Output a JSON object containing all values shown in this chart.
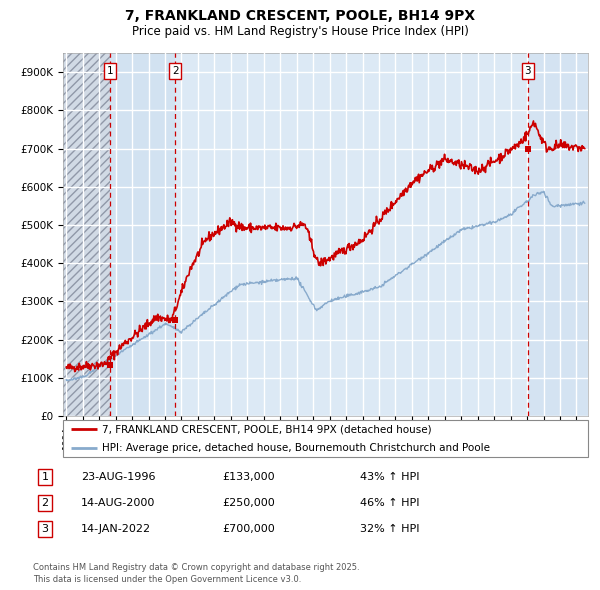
{
  "title": "7, FRANKLAND CRESCENT, POOLE, BH14 9PX",
  "subtitle": "Price paid vs. HM Land Registry's House Price Index (HPI)",
  "ylim": [
    0,
    950000
  ],
  "yticks": [
    0,
    100000,
    200000,
    300000,
    400000,
    500000,
    600000,
    700000,
    800000,
    900000
  ],
  "ytick_labels": [
    "£0",
    "£100K",
    "£200K",
    "£300K",
    "£400K",
    "£500K",
    "£600K",
    "£700K",
    "£800K",
    "£900K"
  ],
  "x_start_year": 1993.8,
  "x_end_year": 2025.7,
  "plot_background": "#dce9f5",
  "grid_color": "#ffffff",
  "purchase_dates": [
    1996.644,
    2000.619,
    2022.038
  ],
  "purchase_prices": [
    133000,
    250000,
    700000
  ],
  "purchase_labels": [
    "1",
    "2",
    "3"
  ],
  "dashed_line_color": "#cc0000",
  "marker_color": "#cc0000",
  "red_line_color": "#cc0000",
  "blue_line_color": "#88aacc",
  "legend_red_label": "7, FRANKLAND CRESCENT, POOLE, BH14 9PX (detached house)",
  "legend_blue_label": "HPI: Average price, detached house, Bournemouth Christchurch and Poole",
  "table_rows": [
    {
      "num": "1",
      "date": "23-AUG-1996",
      "price": "£133,000",
      "pct": "43% ↑ HPI"
    },
    {
      "num": "2",
      "date": "14-AUG-2000",
      "price": "£250,000",
      "pct": "46% ↑ HPI"
    },
    {
      "num": "3",
      "date": "14-JAN-2022",
      "price": "£700,000",
      "pct": "32% ↑ HPI"
    }
  ],
  "footer": "Contains HM Land Registry data © Crown copyright and database right 2025.\nThis data is licensed under the Open Government Licence v3.0."
}
